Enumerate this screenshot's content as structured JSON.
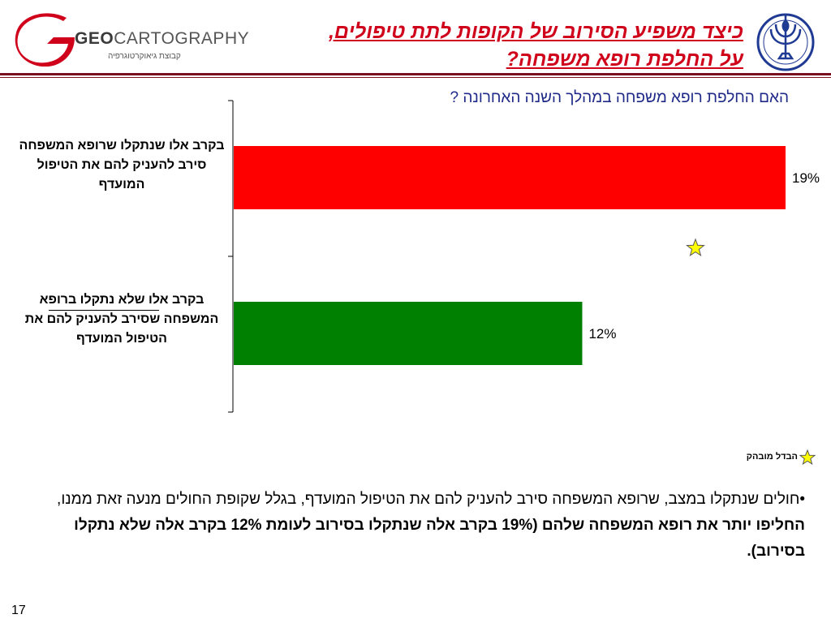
{
  "header": {
    "brand_geo": "GEO",
    "brand_carto": "CARTOGRAPHY",
    "brand_tagline": "קבוצת גיאוקרטוגרפיה",
    "title_line1": "כיצד משפיע הסירוב של הקופות לתת טיפולים,",
    "title_line2": "על החלפת רופא משפחה?",
    "accent_color": "#d0021b",
    "rule_color": "#7a1020"
  },
  "question": "האם החלפת רופא משפחה במהלך השנה האחרונה ?",
  "chart_data": {
    "type": "bar",
    "orientation": "horizontal",
    "categories": [
      "בקרב אלו שנתקלו שרופא המשפחה סירב להעניק להם את הטיפול המועדף",
      "בקרב אלו שלא נתקלו ברופא המשפחה שסירב להעניק להם את הטיפול המועדף"
    ],
    "values": [
      19,
      12
    ],
    "value_labels": [
      "19%",
      "12%"
    ],
    "colors": [
      "#ff0000",
      "#008000"
    ],
    "xlim": [
      0,
      19
    ],
    "grid": false,
    "legend": "bottom-right"
  },
  "legend": {
    "text": "הבדל מובהק",
    "icon": "star-icon",
    "star_color": "#ffff00"
  },
  "summary": {
    "bullet": "•",
    "part1": "חולים שנתקלו במצב, שרופא המשפחה סירב להעניק להם את הטיפול המועדף, בגלל שקופת החולים מנעה זאת ממנו, ",
    "part2_bold": "החליפו יותר את רופא המשפחה שלהם (19% בקרב אלה שנתקלו בסירוב לעומת 12% בקרב אלה שלא נתקלו בסירוב)."
  },
  "page_number": "17"
}
